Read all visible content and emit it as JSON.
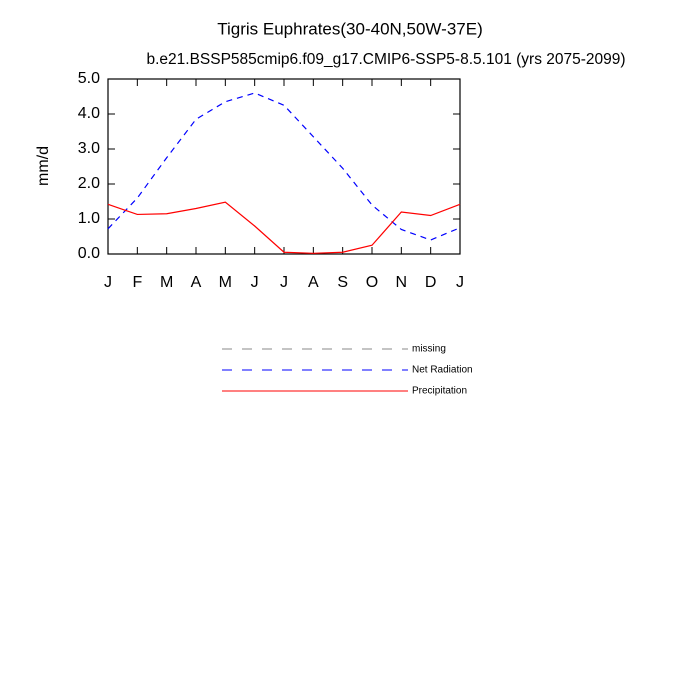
{
  "chart_data": {
    "type": "line",
    "title": "Tigris Euphrates(30-40N,50W-37E)",
    "subtitle": "b.e21.BSSP585cmip6.f09_g17.CMIP6-SSP5-8.5.101 (yrs 2075-2099)",
    "y_label": "mm/d",
    "categories": [
      "J",
      "F",
      "M",
      "A",
      "M",
      "J",
      "J",
      "A",
      "S",
      "O",
      "N",
      "D",
      "J"
    ],
    "ylim": [
      0,
      5
    ],
    "yticks": [
      {
        "value": 0,
        "label": "0.0"
      },
      {
        "value": 1,
        "label": "1.0"
      },
      {
        "value": 2,
        "label": "2.0"
      },
      {
        "value": 3,
        "label": "3.0"
      },
      {
        "value": 4,
        "label": "4.0"
      },
      {
        "value": 5,
        "label": "5.0"
      }
    ],
    "series": [
      {
        "name": "missing",
        "color": "#888888",
        "dashed": true,
        "values": [
          null,
          null,
          null,
          null,
          null,
          null,
          null,
          null,
          null,
          null,
          null,
          null,
          null
        ]
      },
      {
        "name": "Net Radiation",
        "color": "#0000ff",
        "dashed": true,
        "values": [
          0.72,
          1.6,
          2.75,
          3.85,
          4.35,
          4.6,
          4.25,
          3.35,
          2.45,
          1.4,
          0.7,
          0.4,
          0.75
        ]
      },
      {
        "name": "Precipitation",
        "color": "#ff0000",
        "dashed": false,
        "values": [
          1.42,
          1.13,
          1.15,
          1.3,
          1.48,
          0.8,
          0.05,
          0.02,
          0.05,
          0.25,
          1.2,
          1.1,
          1.42
        ]
      }
    ]
  }
}
